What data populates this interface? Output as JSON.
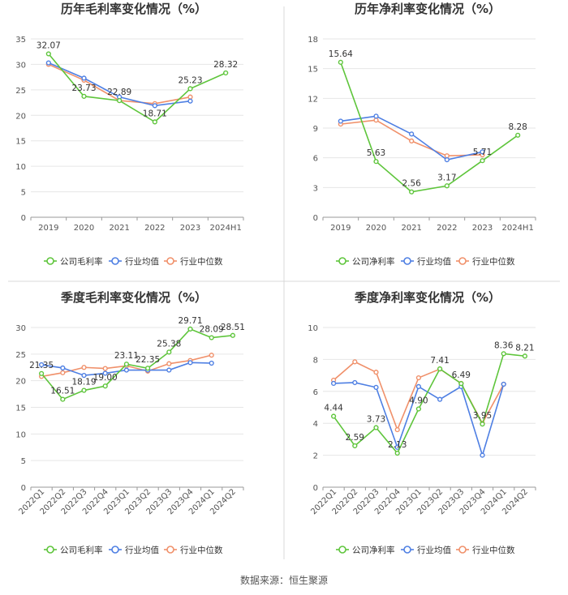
{
  "source_label": "数据来源：恒生聚源",
  "colors": {
    "company": "#5ec53b",
    "industry_avg": "#4e7fe3",
    "industry_median": "#f0906a",
    "grid": "#e6e6e6",
    "axis": "#999999",
    "text": "#555555",
    "title": "#333333",
    "divider": "#d9d9d9"
  },
  "chart_data": [
    {
      "type": "line",
      "title": "历年毛利率变化情况（%）",
      "categories": [
        "2019",
        "2020",
        "2021",
        "2022",
        "2023",
        "2024H1"
      ],
      "ylim": [
        0,
        35
      ],
      "yticks": [
        0,
        5,
        10,
        15,
        20,
        25,
        30,
        35
      ],
      "rotate_x": false,
      "series": [
        {
          "name": "公司毛利率",
          "color_key": "company",
          "values": [
            32.07,
            23.73,
            22.89,
            18.71,
            25.23,
            28.32
          ],
          "labels": [
            "32.07",
            "23.73",
            "22.89",
            "18.71",
            "25.23",
            "28.32"
          ]
        },
        {
          "name": "行业均值",
          "color_key": "industry_avg",
          "values": [
            30.3,
            27.3,
            23.6,
            21.9,
            22.8,
            null
          ],
          "labels": []
        },
        {
          "name": "行业中位数",
          "color_key": "industry_median",
          "values": [
            30.0,
            26.9,
            22.9,
            22.3,
            23.6,
            null
          ],
          "labels": []
        }
      ]
    },
    {
      "type": "line",
      "title": "历年净利率变化情况（%）",
      "categories": [
        "2019",
        "2020",
        "2021",
        "2022",
        "2023",
        "2024H1"
      ],
      "ylim": [
        0,
        18
      ],
      "yticks": [
        0,
        3,
        6,
        9,
        12,
        15,
        18
      ],
      "rotate_x": false,
      "series": [
        {
          "name": "公司净利率",
          "color_key": "company",
          "values": [
            15.64,
            5.63,
            2.56,
            3.17,
            5.71,
            8.28
          ],
          "labels": [
            "15.64",
            "5.63",
            "2.56",
            "3.17",
            "5.71",
            "8.28"
          ]
        },
        {
          "name": "行业均值",
          "color_key": "industry_avg",
          "values": [
            9.7,
            10.2,
            8.4,
            5.8,
            6.6,
            null
          ],
          "labels": []
        },
        {
          "name": "行业中位数",
          "color_key": "industry_median",
          "values": [
            9.4,
            9.8,
            7.7,
            6.2,
            6.3,
            null
          ],
          "labels": []
        }
      ]
    },
    {
      "type": "line",
      "title": "季度毛利率变化情况（%）",
      "categories": [
        "2022Q1",
        "2022Q2",
        "2022Q3",
        "2022Q4",
        "2023Q1",
        "2023Q2",
        "2023Q3",
        "2023Q4",
        "2024Q1",
        "2024Q2"
      ],
      "ylim": [
        0,
        30
      ],
      "yticks": [
        0,
        5,
        10,
        15,
        20,
        25,
        30
      ],
      "rotate_x": true,
      "series": [
        {
          "name": "公司毛利率",
          "color_key": "company",
          "values": [
            21.35,
            16.51,
            18.19,
            19.0,
            23.11,
            22.35,
            25.38,
            29.71,
            28.09,
            28.51
          ],
          "labels": [
            "21.35",
            "16.51",
            "18.19",
            "19.00",
            "23.11",
            "22.35",
            "25.38",
            "29.71",
            "28.09",
            "28.51"
          ]
        },
        {
          "name": "行业均值",
          "color_key": "industry_avg",
          "values": [
            23.0,
            22.4,
            21.0,
            21.4,
            22.0,
            22.0,
            22.0,
            23.4,
            23.3,
            null
          ],
          "labels": []
        },
        {
          "name": "行业中位数",
          "color_key": "industry_median",
          "values": [
            20.8,
            21.5,
            22.5,
            22.3,
            22.8,
            21.8,
            23.2,
            23.8,
            24.8,
            null
          ],
          "labels": []
        }
      ]
    },
    {
      "type": "line",
      "title": "季度净利率变化情况（%）",
      "categories": [
        "2022Q1",
        "2022Q2",
        "2022Q3",
        "2022Q4",
        "2023Q1",
        "2023Q2",
        "2023Q3",
        "2023Q4",
        "2024Q1",
        "2024Q2"
      ],
      "ylim": [
        0,
        10
      ],
      "yticks": [
        0,
        2,
        4,
        6,
        8,
        10
      ],
      "rotate_x": true,
      "series": [
        {
          "name": "公司净利率",
          "color_key": "company",
          "values": [
            4.44,
            2.59,
            3.73,
            2.13,
            4.9,
            7.41,
            6.49,
            3.95,
            8.36,
            8.21
          ],
          "labels": [
            "4.44",
            "2.59",
            "3.73",
            "2.13",
            "4.90",
            "7.41",
            "6.49",
            "3.95",
            "8.36",
            "8.21"
          ]
        },
        {
          "name": "行业均值",
          "color_key": "industry_avg",
          "values": [
            6.5,
            6.55,
            6.25,
            2.5,
            6.3,
            5.5,
            6.3,
            2.0,
            6.45,
            null
          ],
          "labels": []
        },
        {
          "name": "行业中位数",
          "color_key": "industry_median",
          "values": [
            6.7,
            7.85,
            7.2,
            3.6,
            6.85,
            7.4,
            6.5,
            4.0,
            6.45,
            null
          ],
          "labels": []
        }
      ]
    }
  ]
}
